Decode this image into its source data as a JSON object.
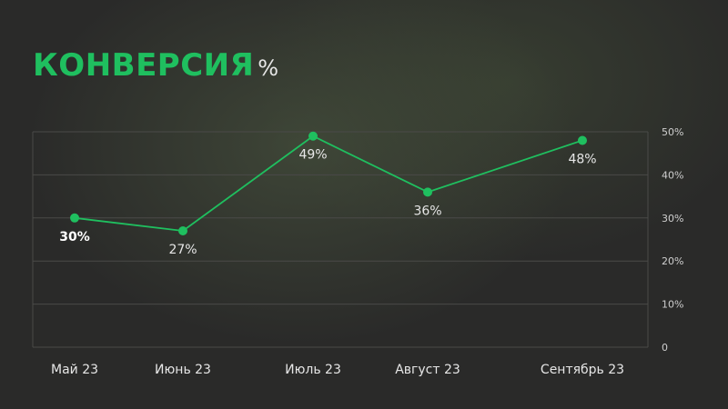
{
  "title": {
    "main": "КОНВЕРСИЯ",
    "unit": "%"
  },
  "colors": {
    "accent": "#1fbf5f",
    "background": "#2a2a29",
    "text": "#e6e6e6",
    "grid": "#4a4a48"
  },
  "chart_data": {
    "type": "line",
    "categories": [
      "Май 23",
      "Июнь 23",
      "Июль 23",
      "Август 23",
      "Сентябрь 23"
    ],
    "series": [
      {
        "values": [
          30,
          27,
          49,
          36,
          48
        ],
        "labels": [
          "30%",
          "27%",
          "49%",
          "36%",
          "48%"
        ]
      }
    ],
    "ylim": [
      0,
      50
    ],
    "yticks": [
      0,
      10,
      20,
      30,
      40,
      50
    ],
    "ytick_labels": [
      "0",
      "10%",
      "20%",
      "30%",
      "40%",
      "50%"
    ],
    "y_axis_side": "right",
    "grid": true,
    "legend": "none"
  }
}
